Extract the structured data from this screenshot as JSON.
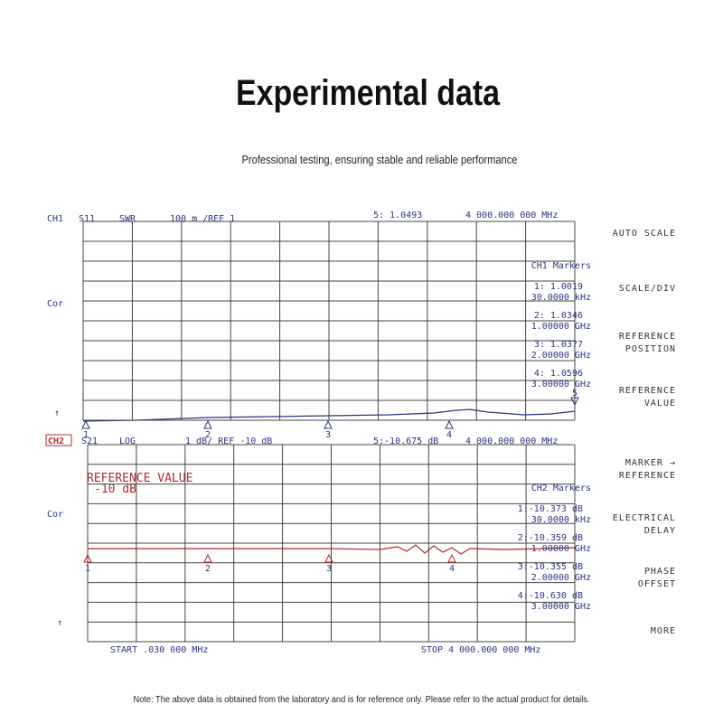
{
  "header": {
    "title": "Experimental data",
    "subtitle": "Professional testing, ensuring stable and reliable performance"
  },
  "channels": [
    {
      "label": "CH1",
      "measurement": "S11",
      "format": "SWR",
      "scale": "100 m /REF 1",
      "active_marker": "5: 1.0493",
      "frequency": "4 000.000 000 MHz",
      "side_label": "Cor",
      "marker_heading": "CH1 Markers",
      "markers": [
        {
          "value": "1: 1.0019",
          "frequency": "30.0000 kHz"
        },
        {
          "value": "2: 1.0346",
          "frequency": "1.00000 GHz"
        },
        {
          "value": "3: 1.0377",
          "frequency": "2.00000 GHz"
        },
        {
          "value": "4: 1.0596",
          "frequency": "3.00000 GHz"
        }
      ],
      "trace_markers": [
        "1",
        "2",
        "3",
        "4",
        "5"
      ]
    },
    {
      "label": "CH2",
      "measurement": "S21",
      "format": "LOG",
      "scale": "1 dB/ REF -10 dB",
      "active_marker": "5:-10.675 dB",
      "frequency": "4 000.000 000 MHz",
      "side_label": "Cor",
      "annotation": [
        "REFERENCE VALUE",
        "-10 dB"
      ],
      "marker_heading": "CH2 Markers",
      "markers": [
        {
          "value": "1:-10.373 dB",
          "frequency": "30.0000 kHz"
        },
        {
          "value": "2:-10.359 dB",
          "frequency": "1.00000 GHz"
        },
        {
          "value": "3:-10.355 dB",
          "frequency": "2.00000 GHz"
        },
        {
          "value": "4:-10.630 dB",
          "frequency": "3.00000 GHz"
        }
      ],
      "trace_markers": [
        "1",
        "2",
        "3",
        "4"
      ],
      "start": "START .030 000 MHz",
      "stop": "STOP 4 000.000 000 MHz"
    }
  ],
  "menu": [
    [
      "AUTO SCALE"
    ],
    [
      "SCALE/DIV"
    ],
    [
      "REFERENCE",
      "POSITION"
    ],
    [
      "REFERENCE",
      "VALUE"
    ],
    [
      "MARKER →",
      "REFERENCE"
    ],
    [
      "ELECTRICAL",
      "DELAY"
    ],
    [
      "PHASE",
      "OFFSET"
    ],
    [
      "MORE"
    ]
  ],
  "note": "Note: The above data is obtained from the laboratory and is for reference only. Please refer to the actual product for details."
}
